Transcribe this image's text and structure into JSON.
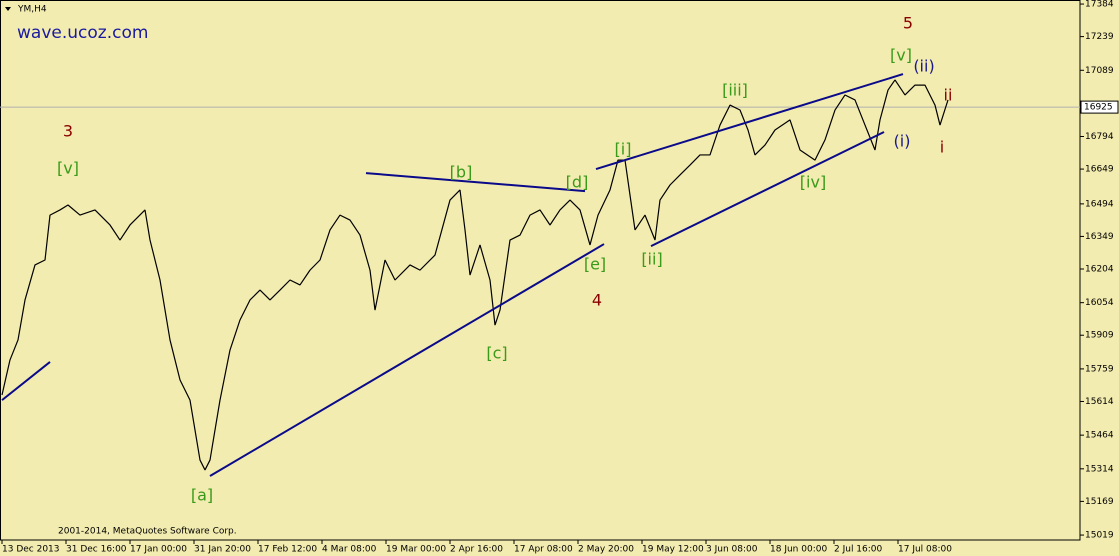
{
  "chart_data": {
    "type": "line",
    "title": "YM,H4",
    "watermark": "wave.ucoz.com",
    "copyright": "2001-2014, MetaQuotes Software Corp.",
    "background": "#f3ecb0",
    "grid": false,
    "xlim": [
      0,
      540
    ],
    "ylim": [
      14997,
      17402
    ],
    "yticks": [
      17384,
      17239,
      17089,
      16794,
      16649,
      16494,
      16349,
      16204,
      16054,
      15909,
      15759,
      15614,
      15464,
      15314,
      15169,
      15019
    ],
    "xticks": [
      {
        "value": 1,
        "label": "13 Dec 2013"
      },
      {
        "value": 33,
        "label": "31 Dec 16:00"
      },
      {
        "value": 65,
        "label": "17 Jan 00:00"
      },
      {
        "value": 97,
        "label": "31 Jan 20:00"
      },
      {
        "value": 129,
        "label": "17 Feb 12:00"
      },
      {
        "value": 161,
        "label": "4 Mar 08:00"
      },
      {
        "value": 193,
        "label": "19 Mar 00:00"
      },
      {
        "value": 225,
        "label": "2 Apr 16:00"
      },
      {
        "value": 257,
        "label": "17 Apr 08:00"
      },
      {
        "value": 289,
        "label": "2 May 20:00"
      },
      {
        "value": 321,
        "label": "19 May 12:00"
      },
      {
        "value": 353,
        "label": "3 Jun 08:00"
      },
      {
        "value": 385,
        "label": "18 Jun 00:00"
      },
      {
        "value": 417,
        "label": "2 Jul 16:00"
      },
      {
        "value": 449,
        "label": "17 Jul 08:00"
      }
    ],
    "price_line": 16925,
    "series": [
      {
        "name": "YM",
        "color": "#000000",
        "x": [
          1,
          5,
          9,
          12.5,
          17.5,
          22.5,
          25,
          30,
          34,
          40,
          47.5,
          55,
          60,
          65,
          72.5,
          75,
          80,
          85,
          90,
          95,
          100,
          102.5,
          105,
          107.5,
          110,
          115,
          120,
          125,
          130,
          135,
          140,
          145,
          150,
          155,
          160,
          165,
          170,
          175,
          180,
          185,
          187.5,
          192.5,
          197.5,
          205,
          210,
          217.5,
          225,
          230,
          232.5,
          235,
          240,
          245,
          247.5,
          250,
          255,
          260,
          265,
          270,
          275,
          280,
          285,
          290,
          295,
          299,
          305,
          309,
          312.5,
          315,
          317.5,
          322.5,
          327.5,
          330,
          335,
          340,
          345,
          350,
          355,
          360,
          365,
          370,
          374,
          377.5,
          382.5,
          387.5,
          395,
          400,
          407.5,
          412.5,
          417.5,
          422.5,
          427.5,
          432.5,
          437.5,
          440,
          444,
          447.5,
          452.5,
          457.5,
          462.5,
          467.5,
          470,
          474
        ],
        "values": [
          15643,
          15799,
          15888,
          16066,
          16222,
          16244,
          16444,
          16467,
          16489,
          16444,
          16467,
          16400,
          16333,
          16400,
          16467,
          16333,
          16155,
          15888,
          15710,
          15620,
          15353,
          15309,
          15353,
          15487,
          15620,
          15843,
          15977,
          16066,
          16110,
          16066,
          16110,
          16155,
          16133,
          16199,
          16244,
          16378,
          16444,
          16422,
          16355,
          16199,
          16021,
          16244,
          16155,
          16222,
          16199,
          16266,
          16511,
          16556,
          16378,
          16177,
          16311,
          16155,
          15954,
          16021,
          16333,
          16355,
          16444,
          16467,
          16400,
          16467,
          16511,
          16467,
          16311,
          16444,
          16556,
          16689,
          16689,
          16533,
          16378,
          16444,
          16333,
          16511,
          16578,
          16623,
          16667,
          16712,
          16712,
          16845,
          16934,
          16912,
          16823,
          16712,
          16756,
          16823,
          16868,
          16734,
          16689,
          16779,
          16912,
          16979,
          16957,
          16845,
          16734,
          16868,
          17001,
          17046,
          16979,
          17023,
          17023,
          16934,
          16845,
          16957
        ]
      }
    ],
    "trendlines": [
      {
        "color": "#0a0a8a",
        "x": [
          1,
          25
        ],
        "y": [
          15620,
          15790
        ]
      },
      {
        "color": "#0a0a8a",
        "x": [
          105,
          302
        ],
        "y": [
          15282,
          16315
        ]
      },
      {
        "color": "#0a0a8a",
        "x": [
          183,
          292.5
        ],
        "y": [
          16631,
          16551
        ]
      },
      {
        "color": "#0a0a8a",
        "x": [
          298,
          451.5
        ],
        "y": [
          16649,
          17072
        ]
      },
      {
        "color": "#0a0a8a",
        "x": [
          325.5,
          442
        ],
        "y": [
          16306,
          16814
        ]
      }
    ],
    "annotations": [
      {
        "text": "3",
        "x": 34,
        "y": 16814,
        "color": "#8b0000"
      },
      {
        "text": "[v]",
        "x": 34,
        "y": 16649,
        "color": "#3a9a1a"
      },
      {
        "text": "[a]",
        "x": 101,
        "y": 15193,
        "color": "#3a9a1a"
      },
      {
        "text": "[b]",
        "x": 230.5,
        "y": 16631,
        "color": "#3a9a1a"
      },
      {
        "text": "[c]",
        "x": 248.5,
        "y": 15825,
        "color": "#3a9a1a"
      },
      {
        "text": "[d]",
        "x": 288.5,
        "y": 16587,
        "color": "#3a9a1a"
      },
      {
        "text": "[e]",
        "x": 297.5,
        "y": 16222,
        "color": "#3a9a1a"
      },
      {
        "text": "4",
        "x": 298.5,
        "y": 16061,
        "color": "#8b0000"
      },
      {
        "text": "[i]",
        "x": 311.5,
        "y": 16734,
        "color": "#3a9a1a"
      },
      {
        "text": "[ii]",
        "x": 326,
        "y": 16244,
        "color": "#3a9a1a"
      },
      {
        "text": "[iii]",
        "x": 367.5,
        "y": 16997,
        "color": "#3a9a1a"
      },
      {
        "text": "[iv]",
        "x": 406.5,
        "y": 16587,
        "color": "#3a9a1a"
      },
      {
        "text": "[v]",
        "x": 450.5,
        "y": 17153,
        "color": "#3a9a1a"
      },
      {
        "text": "5",
        "x": 454,
        "y": 17295,
        "color": "#8b0000"
      },
      {
        "text": "(ii)",
        "x": 462,
        "y": 17104,
        "color": "#1a1a8a"
      },
      {
        "text": "(i)",
        "x": 451,
        "y": 16770,
        "color": "#1a1a8a"
      },
      {
        "text": "ii",
        "x": 474,
        "y": 16974,
        "color": "#8b0000"
      },
      {
        "text": "i",
        "x": 471,
        "y": 16743,
        "color": "#8b0000"
      }
    ]
  }
}
